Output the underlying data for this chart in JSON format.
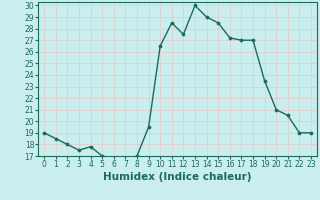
{
  "x": [
    0,
    1,
    2,
    3,
    4,
    5,
    6,
    7,
    8,
    9,
    10,
    11,
    12,
    13,
    14,
    15,
    16,
    17,
    18,
    19,
    20,
    21,
    22,
    23
  ],
  "y": [
    19,
    18.5,
    18,
    17.5,
    17.8,
    17,
    16.8,
    16.7,
    17,
    19.5,
    26.5,
    28.5,
    27.5,
    30,
    29,
    28.5,
    27.2,
    27,
    27,
    23.5,
    21,
    20.5,
    19,
    19
  ],
  "line_color": "#1a6b5a",
  "marker_color": "#1a6b5a",
  "bg_color": "#caeeed",
  "grid_color": "#e8c8c8",
  "xlabel": "Humidex (Indice chaleur)",
  "ylim": [
    17,
    30
  ],
  "xlim": [
    -0.5,
    23.5
  ],
  "yticks": [
    17,
    18,
    19,
    20,
    21,
    22,
    23,
    24,
    25,
    26,
    27,
    28,
    29,
    30
  ],
  "xticks": [
    0,
    1,
    2,
    3,
    4,
    5,
    6,
    7,
    8,
    9,
    10,
    11,
    12,
    13,
    14,
    15,
    16,
    17,
    18,
    19,
    20,
    21,
    22,
    23
  ],
  "tick_label_fontsize": 5.5,
  "xlabel_fontsize": 7.5,
  "line_width": 1.0,
  "marker_size": 2.2
}
